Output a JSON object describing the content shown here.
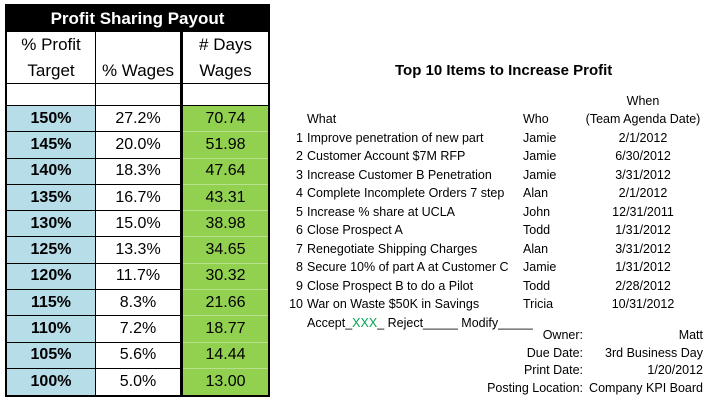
{
  "payout": {
    "title": "Profit Sharing Payout",
    "header_row1": [
      "% Profit",
      "",
      "# Days"
    ],
    "header_row2": [
      "Target",
      "% Wages",
      "Wages"
    ],
    "rows": [
      {
        "target": "150%",
        "wages_pct": "27.2%",
        "days": "70.74"
      },
      {
        "target": "145%",
        "wages_pct": "20.0%",
        "days": "51.98"
      },
      {
        "target": "140%",
        "wages_pct": "18.3%",
        "days": "47.64"
      },
      {
        "target": "135%",
        "wages_pct": "16.7%",
        "days": "43.31"
      },
      {
        "target": "130%",
        "wages_pct": "15.0%",
        "days": "38.98"
      },
      {
        "target": "125%",
        "wages_pct": "13.3%",
        "days": "34.65"
      },
      {
        "target": "120%",
        "wages_pct": "11.7%",
        "days": "30.32"
      },
      {
        "target": "115%",
        "wages_pct": "8.3%",
        "days": "21.66"
      },
      {
        "target": "110%",
        "wages_pct": "7.2%",
        "days": "18.77"
      },
      {
        "target": "105%",
        "wages_pct": "5.6%",
        "days": "14.44"
      },
      {
        "target": "100%",
        "wages_pct": "5.0%",
        "days": "13.00"
      }
    ],
    "colors": {
      "target_fill": "#b7dde8",
      "days_fill": "#92d050",
      "title_fill": "#000000"
    }
  },
  "items": {
    "title": "Top 10 Items to Increase Profit",
    "col_when_top": "When",
    "col_what": "What",
    "col_who": "Who",
    "col_when": "(Team Agenda Date)",
    "rows": [
      {
        "num": "1",
        "what": "Improve penetration of new part",
        "who": "Jamie",
        "when": "2/1/2012"
      },
      {
        "num": "2",
        "what": "Customer Account $7M RFP",
        "who": "Jamie",
        "when": "6/30/2012"
      },
      {
        "num": "3",
        "what": "Increase Customer B Penetration",
        "who": "Jamie",
        "when": "3/31/2012"
      },
      {
        "num": "4",
        "what": "Complete Incomplete Orders 7 step",
        "who": "Alan",
        "when": "2/1/2012"
      },
      {
        "num": "5",
        "what": "Increase % share at UCLA",
        "who": "John",
        "when": "12/31/2011"
      },
      {
        "num": "6",
        "what": "Close Prospect A",
        "who": "Todd",
        "when": "1/31/2012"
      },
      {
        "num": "7",
        "what": "Renegotiate Shipping Charges",
        "who": "Alan",
        "when": "3/31/2012"
      },
      {
        "num": "8",
        "what": "Secure 10% of part A at Customer C",
        "who": "Jamie",
        "when": "1/31/2012"
      },
      {
        "num": "9",
        "what": "Close Prospect B to do a Pilot",
        "who": "Todd",
        "when": "2/28/2012"
      },
      {
        "num": "10",
        "what": "War on Waste $50K in Savings",
        "who": "Tricia",
        "when": "10/31/2012"
      }
    ],
    "accept": {
      "pre": "Accept_",
      "highlight": "XXX",
      "post": "_ Reject_____ Modify_____",
      "highlight_color": "#00a651"
    }
  },
  "meta": [
    {
      "label": "Owner:",
      "value": "Matt"
    },
    {
      "label": "Due Date:",
      "value": "3rd Business Day"
    },
    {
      "label": "Print Date:",
      "value": "1/20/2012"
    },
    {
      "label": "Posting Location:",
      "value": "Company KPI Board"
    }
  ]
}
